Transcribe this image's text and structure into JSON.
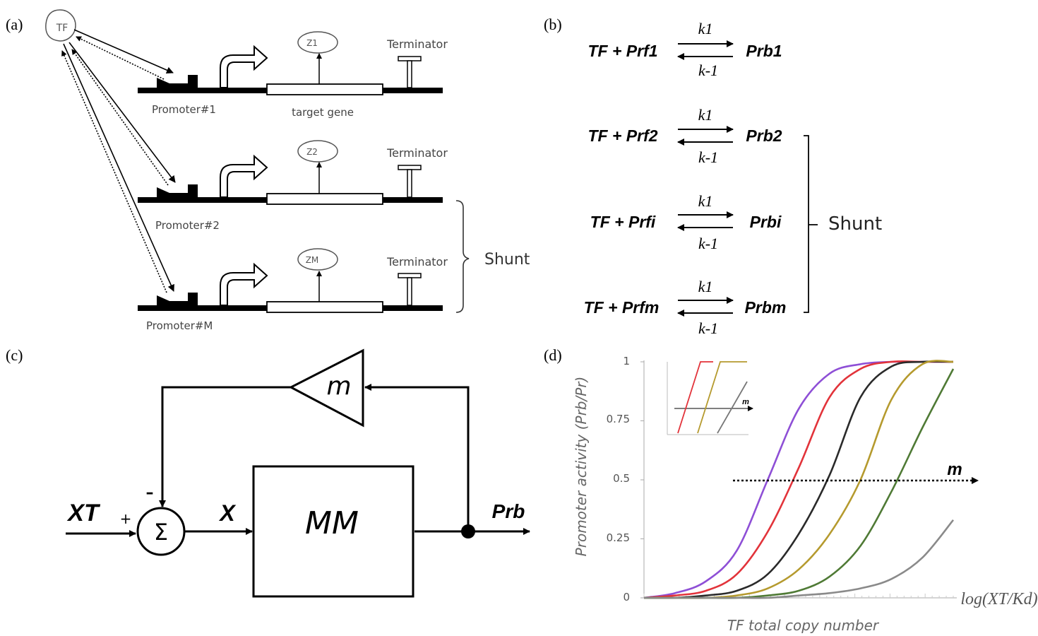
{
  "panel_a": {
    "letter": "(a)",
    "tf_label": "TF",
    "terminator_label": "Terminator",
    "target_gene_label": "target gene",
    "promoters": [
      "Promoter#1",
      "Promoter#2",
      "Promoter#M"
    ],
    "outputs": [
      "Z1",
      "Z2",
      "ZM"
    ],
    "shunt_label": "Shunt"
  },
  "panel_b": {
    "letter": "(b)",
    "k_forward": "k1",
    "k_reverse": "k-1",
    "reactions": [
      {
        "left": "TF + Prf1",
        "right": "Prb1"
      },
      {
        "left": "TF + Prf2",
        "right": "Prb2"
      },
      {
        "left": "TF + Prfi",
        "right": "Prbi"
      },
      {
        "left": "TF + Prfm",
        "right": "Prbm"
      }
    ],
    "shunt_label": "Shunt"
  },
  "panel_c": {
    "letter": "(c)",
    "input_label": "XT",
    "plus_sign": "+",
    "minus_sign": "–",
    "sum_symbol": "Σ",
    "x_label": "X",
    "block_label": "MM",
    "gain_label": "m",
    "output_label": "Prb"
  },
  "panel_d": {
    "letter": "(d)",
    "ylabel": "Promoter activity (Prb/Pr)",
    "xlabel": "TF total copy number",
    "x_axis_end_label": "log(XT/Kd)",
    "arrow_label": "m",
    "inset_arrow_label": "m",
    "y_ticks": [
      "0",
      "0.25",
      "0.5",
      "0.75",
      "1"
    ]
  },
  "chart_data": {
    "type": "line",
    "title": "",
    "xlabel": "TF total copy number",
    "ylabel": "Promoter activity (Prb/Pr)",
    "ylim": [
      0,
      1
    ],
    "grid": false,
    "note_arrow": "m",
    "series": [
      {
        "color": "#8e4fd6",
        "x": [
          0,
          1,
          2,
          3,
          4,
          5,
          6,
          7,
          8,
          9,
          10
        ],
        "values": [
          0,
          0.02,
          0.07,
          0.2,
          0.5,
          0.8,
          0.95,
          0.99,
          1,
          1,
          1
        ]
      },
      {
        "color": "#e2333a",
        "x": [
          0,
          1,
          2,
          3,
          4,
          5,
          6,
          7,
          8,
          9,
          10
        ],
        "values": [
          0,
          0.01,
          0.03,
          0.1,
          0.28,
          0.55,
          0.85,
          0.97,
          1,
          1,
          1
        ]
      },
      {
        "color": "#2a2a2a",
        "x": [
          0,
          1,
          2,
          3,
          4,
          5,
          6,
          7,
          8,
          9,
          10
        ],
        "values": [
          0,
          0,
          0.01,
          0.03,
          0.1,
          0.27,
          0.52,
          0.85,
          0.98,
          1,
          1
        ]
      },
      {
        "color": "#b59a2e",
        "x": [
          0,
          1,
          2,
          3,
          4,
          5,
          6,
          7,
          8,
          9,
          10
        ],
        "values": [
          0,
          0,
          0,
          0.01,
          0.04,
          0.12,
          0.27,
          0.5,
          0.84,
          0.99,
          1
        ]
      },
      {
        "color": "#4f7a35",
        "x": [
          0,
          1,
          2,
          3,
          4,
          5,
          6,
          7,
          8,
          9,
          10
        ],
        "values": [
          0,
          0,
          0,
          0,
          0.01,
          0.03,
          0.09,
          0.22,
          0.45,
          0.72,
          0.97
        ]
      },
      {
        "color": "#8a8a8a",
        "x": [
          0,
          1,
          2,
          3,
          4,
          5,
          6,
          7,
          8,
          9,
          10
        ],
        "values": [
          0,
          0,
          0,
          0,
          0,
          0.01,
          0.02,
          0.04,
          0.08,
          0.17,
          0.33
        ]
      }
    ]
  }
}
